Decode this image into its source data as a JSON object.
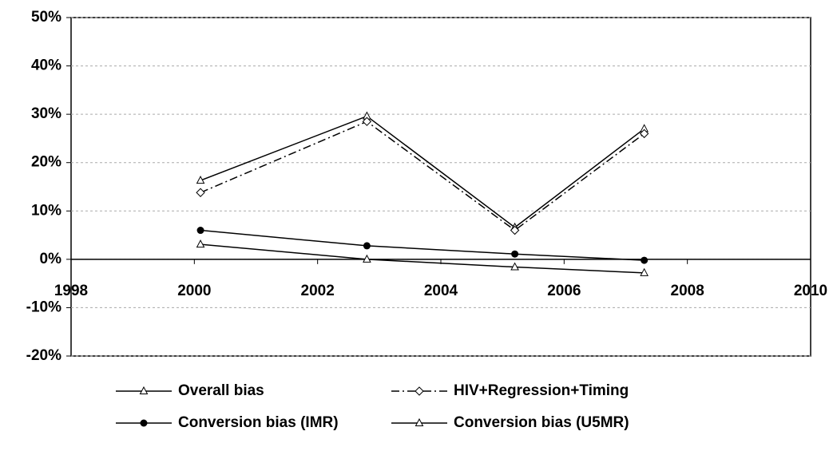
{
  "chart_data": {
    "type": "line",
    "x": [
      2000.1,
      2002.8,
      2005.2,
      2007.3
    ],
    "series": [
      {
        "name": "Overall bias",
        "color": "#000000",
        "marker": "triangle",
        "linestyle": "solid",
        "values": [
          16.3,
          29.6,
          6.6,
          27
        ]
      },
      {
        "name": "HIV+Regression+Timing",
        "color": "#000000",
        "marker": "diamond",
        "linestyle": "dashdot",
        "values": [
          13.8,
          28.5,
          6,
          26
        ]
      },
      {
        "name": "Conversion bias (IMR)",
        "color": "#000000",
        "marker": "circle",
        "linestyle": "solid",
        "values": [
          6,
          2.8,
          1.1,
          -0.2
        ]
      },
      {
        "name": "Conversion bias (U5MR)",
        "color": "#000000",
        "marker": "triangle",
        "linestyle": "solid",
        "values": [
          3.1,
          0,
          -1.6,
          -2.8
        ]
      }
    ],
    "xlim": [
      1998,
      2010
    ],
    "xticks": [
      1998,
      2000,
      2002,
      2004,
      2006,
      2008,
      2010
    ],
    "ylim": [
      -20,
      50
    ],
    "yticks": [
      {
        "value": -20,
        "label": "-20%"
      },
      {
        "value": -10,
        "label": "-10%"
      },
      {
        "value": 0,
        "label": "0%"
      },
      {
        "value": 10,
        "label": "10%"
      },
      {
        "value": 20,
        "label": "20%"
      },
      {
        "value": 30,
        "label": "30%"
      },
      {
        "value": 40,
        "label": "40%"
      },
      {
        "value": 50,
        "label": "50%"
      }
    ],
    "grid": true
  }
}
